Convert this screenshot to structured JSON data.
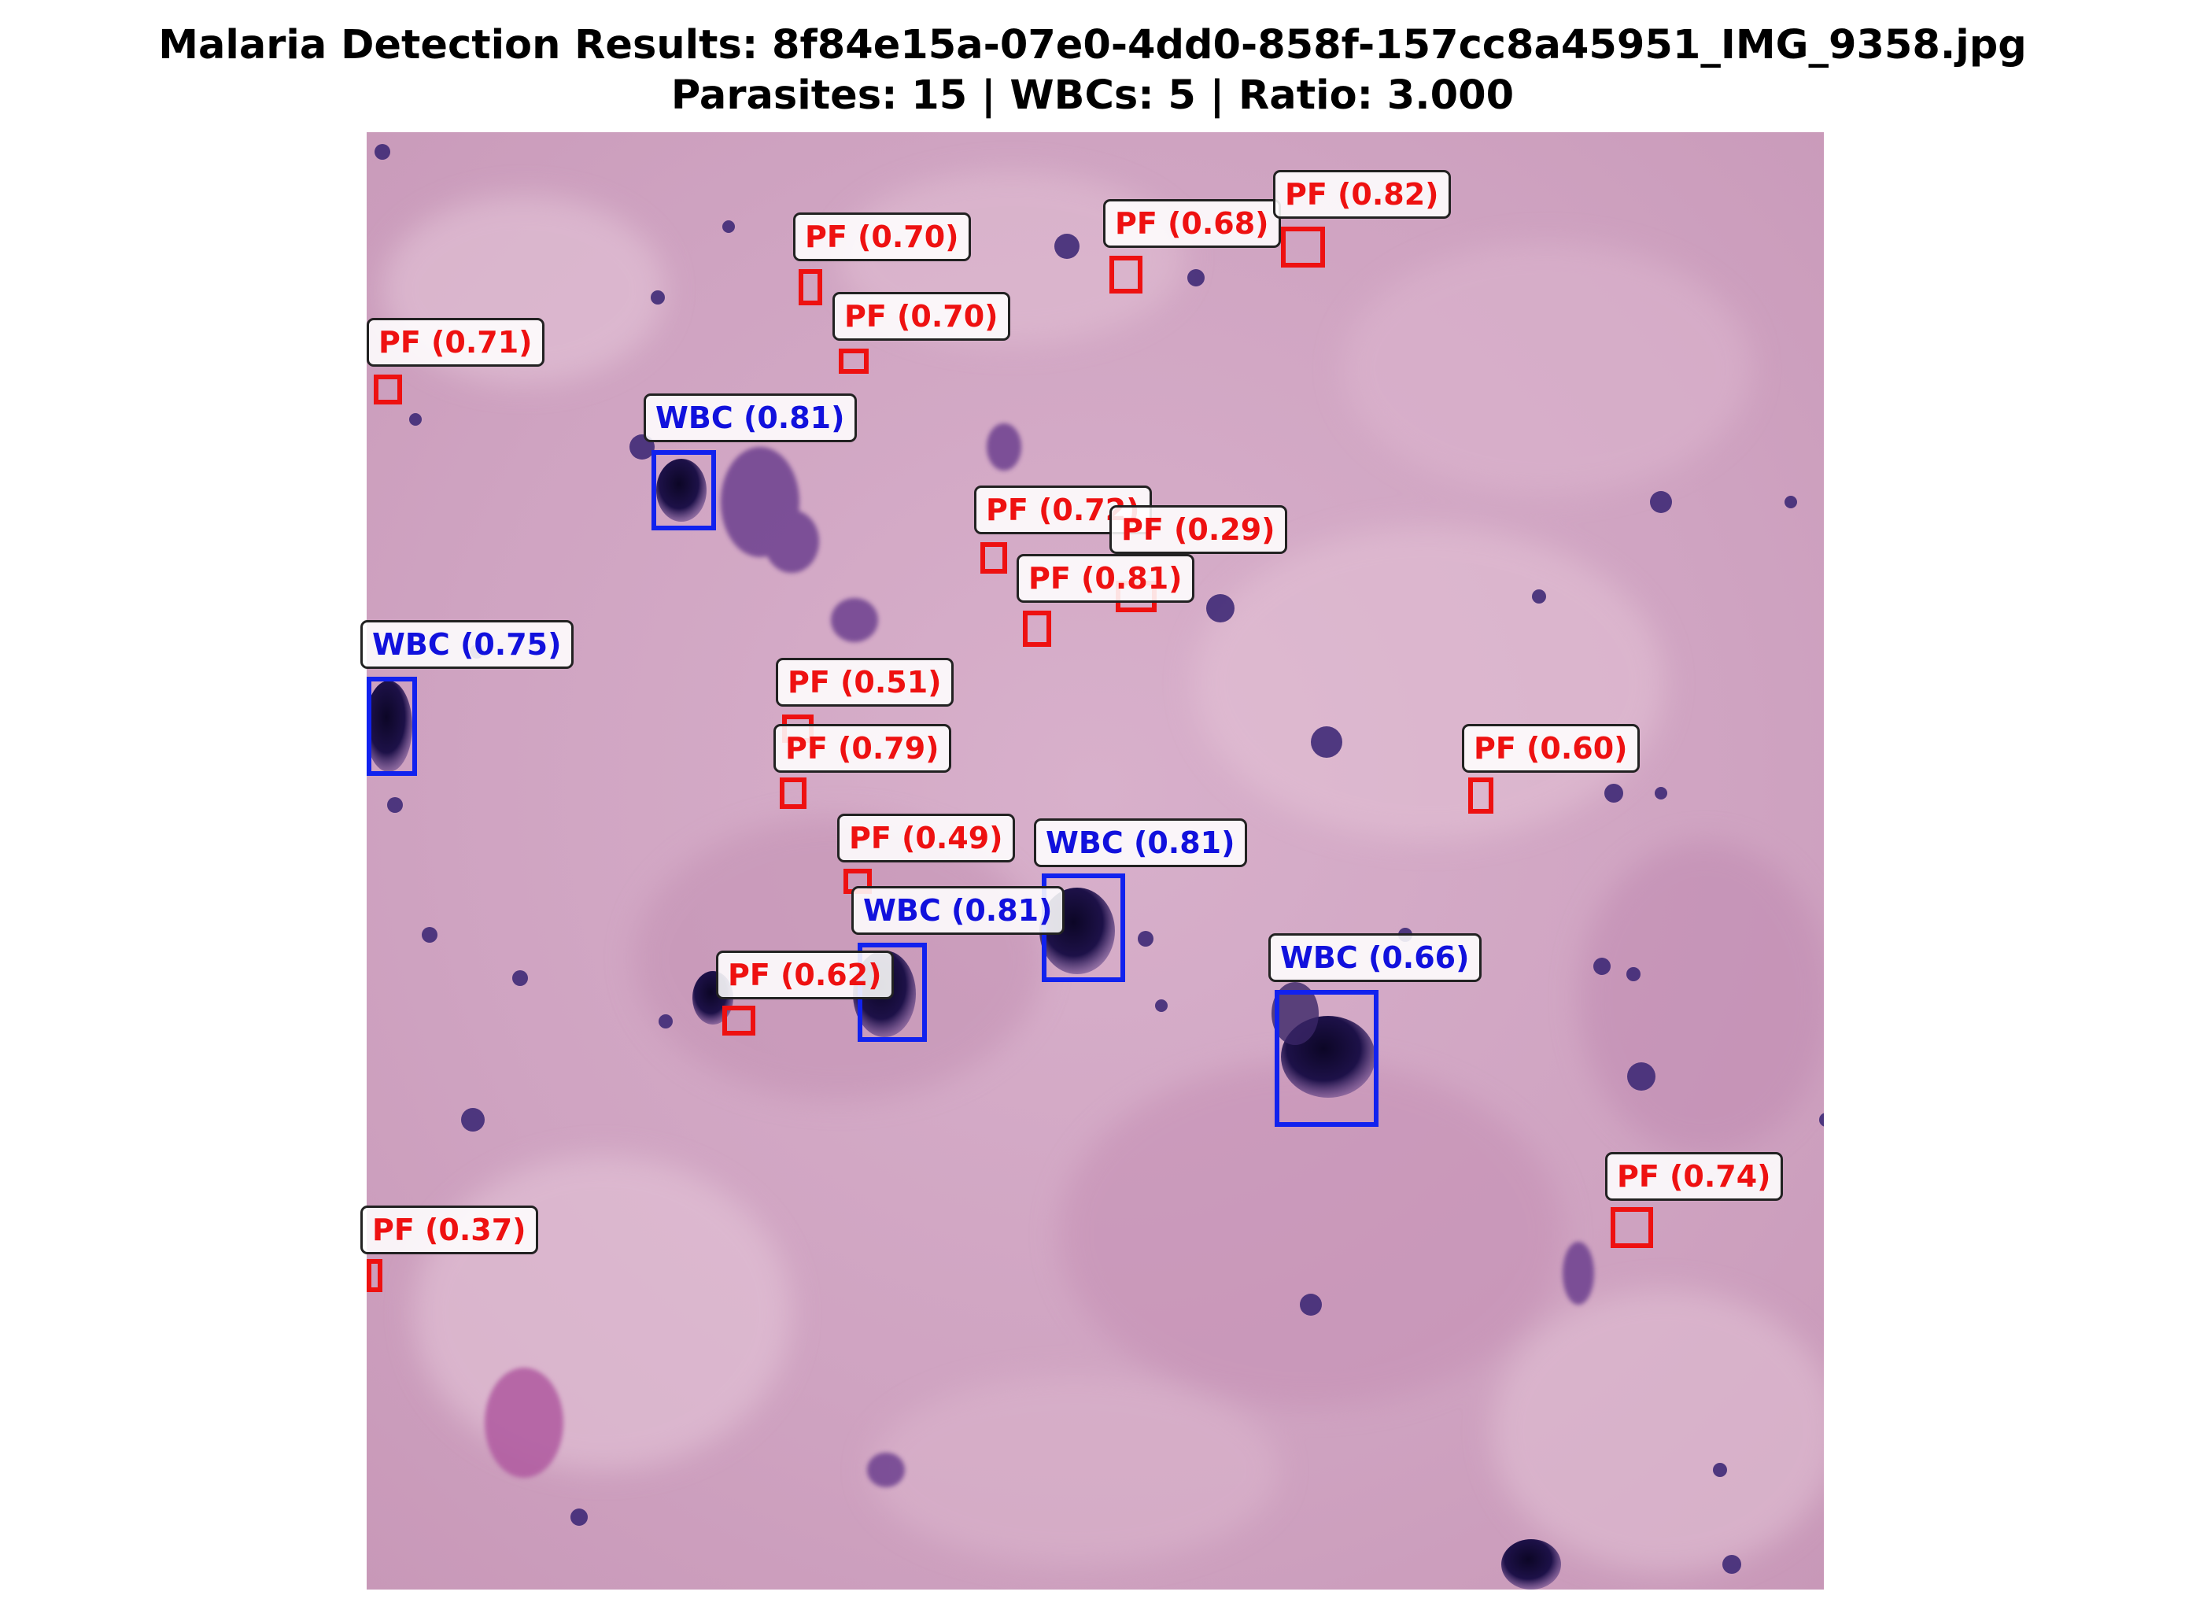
{
  "title": {
    "main": "Malaria Detection Results: 8f84e15a-07e0-4dd0-858f-157cc8a45951_IMG_9358.jpg",
    "sub": "Parasites: 15 | WBCs: 5 | Ratio: 3.000"
  },
  "summary": {
    "parasites": 15,
    "wbcs": 5,
    "ratio": 3.0
  },
  "colors": {
    "parasite": "#ee1111",
    "wbc": "#1122ee",
    "smear_background": "#d2a8c4",
    "stain_dark": "#1a1040"
  },
  "image": {
    "content": "stained blood smear micrograph"
  },
  "detections": [
    {
      "label": "PF (0.71)",
      "class": "PF",
      "confidence": 0.71
    },
    {
      "label": "PF (0.70)",
      "class": "PF",
      "confidence": 0.7
    },
    {
      "label": "PF (0.70)",
      "class": "PF",
      "confidence": 0.7
    },
    {
      "label": "PF (0.68)",
      "class": "PF",
      "confidence": 0.68
    },
    {
      "label": "PF (0.82)",
      "class": "PF",
      "confidence": 0.82
    },
    {
      "label": "WBC (0.81)",
      "class": "WBC",
      "confidence": 0.81
    },
    {
      "label": "PF (0.72)",
      "class": "PF",
      "confidence": 0.72
    },
    {
      "label": "PF (0.29)",
      "class": "PF",
      "confidence": 0.29
    },
    {
      "label": "PF (0.81)",
      "class": "PF",
      "confidence": 0.81
    },
    {
      "label": "WBC (0.75)",
      "class": "WBC",
      "confidence": 0.75
    },
    {
      "label": "PF (0.51)",
      "class": "PF",
      "confidence": 0.51
    },
    {
      "label": "PF (0.79)",
      "class": "PF",
      "confidence": 0.79
    },
    {
      "label": "PF (0.60)",
      "class": "PF",
      "confidence": 0.6
    },
    {
      "label": "PF (0.49)",
      "class": "PF",
      "confidence": 0.49
    },
    {
      "label": "WBC (0.81)",
      "class": "WBC",
      "confidence": 0.81
    },
    {
      "label": "WBC (0.81)",
      "class": "WBC",
      "confidence": 0.81
    },
    {
      "label": "PF (0.62)",
      "class": "PF",
      "confidence": 0.62
    },
    {
      "label": "WBC (0.66)",
      "class": "WBC",
      "confidence": 0.66
    },
    {
      "label": "PF (0.74)",
      "class": "PF",
      "confidence": 0.74
    },
    {
      "label": "PF (0.37)",
      "class": "PF",
      "confidence": 0.37
    }
  ]
}
